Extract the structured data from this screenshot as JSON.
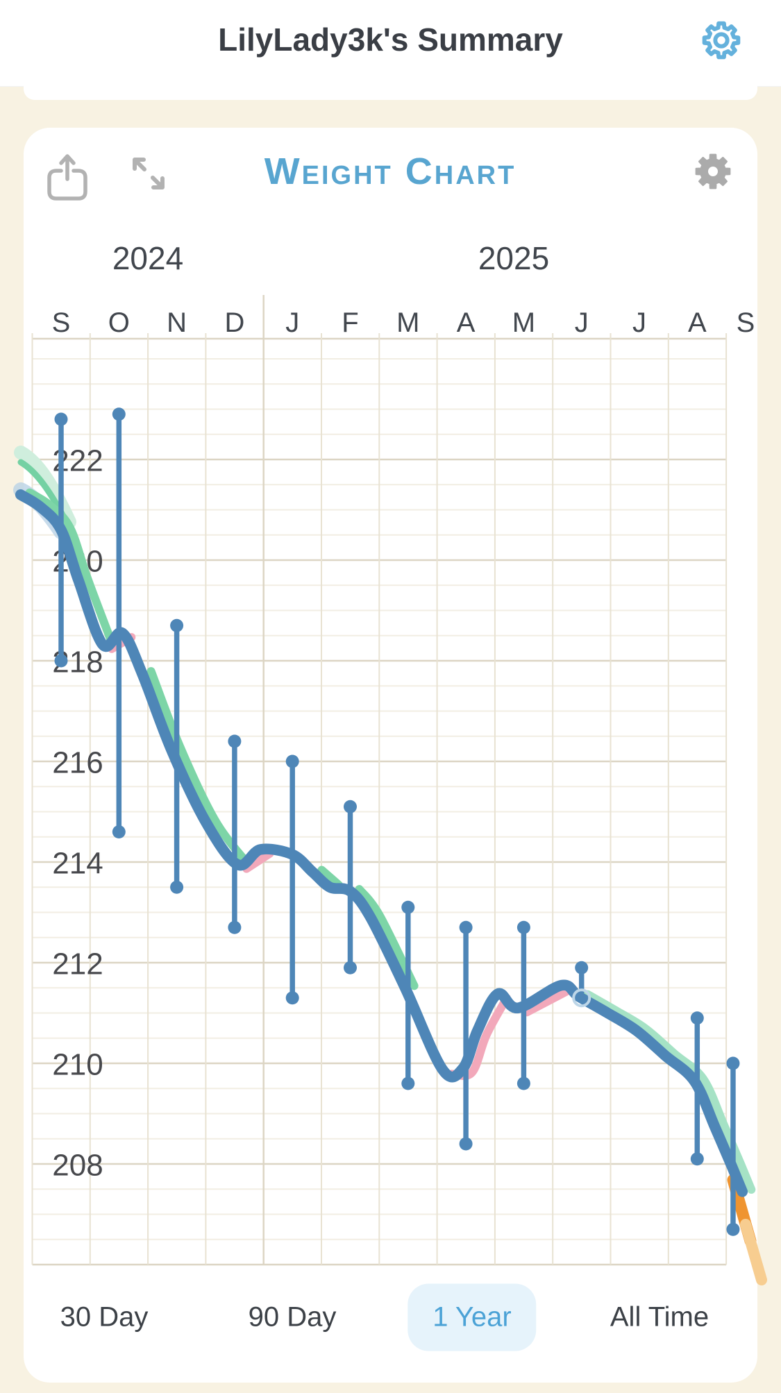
{
  "header": {
    "title": "LilyLady3k's Summary",
    "settings_icon": "gear-icon"
  },
  "card": {
    "title": "Weight Chart",
    "toolbar": {
      "share_icon": "share-icon",
      "expand_icon": "expand-arrows-icon",
      "settings_icon": "gear-icon"
    }
  },
  "tabs": [
    {
      "label": "30 Day",
      "active": false
    },
    {
      "label": "90 Day",
      "active": false
    },
    {
      "label": "1 Year",
      "active": true
    },
    {
      "label": "All Time",
      "active": false
    }
  ],
  "colors": {
    "page_background": "#f8f2e2",
    "card_background": "#ffffff",
    "accent_blue": "#58a5d0",
    "header_gear_blue": "#64b1dc",
    "toolbar_gray": "#b2b2b2",
    "gear_gray": "#ababab",
    "line_blue": "#4e86b7",
    "band_green": "#7dd5a7",
    "band_green_pale": "#a5e2c5",
    "band_pink": "#f2a8ba",
    "projection_orange": "#ef9430",
    "projection_orange_pale": "#f7cd90",
    "grid_major": "#dcd5c4",
    "grid_minor": "#f2eee3",
    "grid_vertical": "#e8e2d2",
    "tab_active_bg": "#e6f3fb",
    "tab_active_text": "#4ba2d6",
    "tab_text": "#3c4147",
    "label_text": "#41464d"
  },
  "chart_data": {
    "type": "line",
    "title": "Weight Chart",
    "x_axis": {
      "month_labels": [
        "S",
        "O",
        "N",
        "D",
        "J",
        "F",
        "M",
        "A",
        "M",
        "J",
        "J",
        "A",
        "S"
      ],
      "year_labels": [
        "2024",
        "2025"
      ],
      "year_divider_after_month_index": 3
    },
    "y_axis": {
      "unit": "lb",
      "min": 206,
      "max": 224.4,
      "major_step": 2,
      "minor_step": 0.5,
      "tick_labels": [
        222,
        220,
        218,
        216,
        214,
        212,
        210,
        208
      ]
    },
    "grid": true,
    "legend": false,
    "series": [
      {
        "name": "trend",
        "style": "thick-smooth-line",
        "monthly_values": [
          220.6,
          218.5,
          216.2,
          214.0,
          214.1,
          213.4,
          211.6,
          209.9,
          211.1,
          211.4,
          210.7,
          209.7,
          207.9
        ],
        "path_points": [
          [
            -0.7,
            221.3
          ],
          [
            -0.35,
            221.05
          ],
          [
            0,
            220.6
          ],
          [
            0.3,
            219.6
          ],
          [
            0.72,
            218.32
          ],
          [
            1.06,
            218.55
          ],
          [
            1.4,
            217.75
          ],
          [
            1.9,
            216.25
          ],
          [
            2.5,
            214.8
          ],
          [
            3.05,
            213.95
          ],
          [
            3.45,
            214.25
          ],
          [
            4.0,
            214.15
          ],
          [
            4.35,
            213.8
          ],
          [
            4.65,
            213.5
          ],
          [
            5.0,
            213.42
          ],
          [
            5.35,
            212.9
          ],
          [
            5.95,
            211.5
          ],
          [
            6.6,
            209.87
          ],
          [
            6.95,
            209.9
          ],
          [
            7.2,
            210.65
          ],
          [
            7.55,
            211.38
          ],
          [
            7.9,
            211.1
          ],
          [
            8.65,
            211.55
          ],
          [
            8.95,
            211.33
          ],
          [
            9.45,
            211.0
          ],
          [
            9.95,
            210.65
          ],
          [
            10.45,
            210.15
          ],
          [
            10.95,
            209.65
          ],
          [
            11.3,
            208.75
          ],
          [
            11.6,
            207.95
          ],
          [
            11.78,
            207.45
          ]
        ]
      },
      {
        "name": "monthly-range",
        "style": "whisker",
        "points": [
          {
            "month": "Sep 2024",
            "m": 0,
            "high": 222.8,
            "low": 218.0
          },
          {
            "month": "Oct 2024",
            "m": 1,
            "high": 222.9,
            "low": 214.6
          },
          {
            "month": "Nov 2024",
            "m": 2,
            "high": 218.7,
            "low": 213.5
          },
          {
            "month": "Dec 2024",
            "m": 3,
            "high": 216.4,
            "low": 212.7
          },
          {
            "month": "Jan 2025",
            "m": 4,
            "high": 216.0,
            "low": 211.3
          },
          {
            "month": "Feb 2025",
            "m": 5,
            "high": 215.1,
            "low": 211.9
          },
          {
            "month": "Mar 2025",
            "m": 6,
            "high": 213.1,
            "low": 209.6
          },
          {
            "month": "Apr 2025",
            "m": 7,
            "high": 212.7,
            "low": 208.4
          },
          {
            "month": "May 2025",
            "m": 8,
            "high": 212.7,
            "low": 209.6
          },
          {
            "month": "Jun 2025",
            "m": 9,
            "high": 211.9,
            "low": 211.3,
            "low_marker": "ring"
          },
          {
            "month": "Aug 2025",
            "m": 11,
            "high": 210.9,
            "low": 208.1
          },
          {
            "month": "Sep 2025",
            "m": 11.62,
            "high": 210.0,
            "low": 206.7
          }
        ]
      }
    ],
    "no_data_months": [
      "Jul 2025"
    ],
    "bands": {
      "green_segments": [
        {
          "from": -0.7,
          "to": 0.8
        },
        {
          "from": 1.1,
          "to": 3.05
        },
        {
          "from": 4.3,
          "to": 4.8
        },
        {
          "from": 5.0,
          "to": 6.55
        },
        {
          "from": 8.95,
          "to": 11.78,
          "pale": true
        }
      ],
      "pink_segments": [
        {
          "from": 0.75,
          "to": 1.1
        },
        {
          "from": 3.0,
          "to": 3.5
        },
        {
          "from": 6.6,
          "to": 7.6
        },
        {
          "from": 7.9,
          "to": 8.65
        }
      ]
    },
    "annotations": [
      {
        "type": "ring-marker",
        "month": "Jun 2025",
        "value": 211.3
      },
      {
        "type": "projection-flare",
        "location": "chart-end Sep 2025",
        "direction": "down-right"
      },
      {
        "type": "left-edge-history-bands",
        "location": "chart-start Aug 2024"
      }
    ]
  }
}
